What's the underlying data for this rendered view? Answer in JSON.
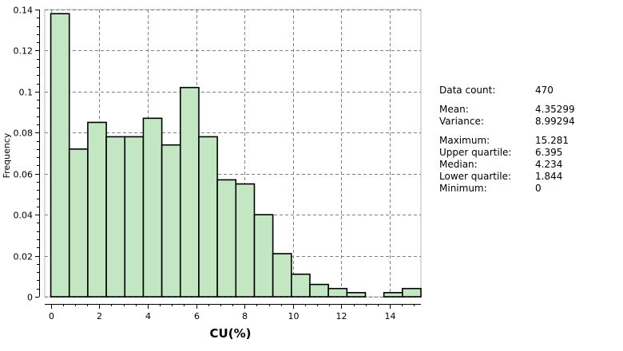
{
  "chart_data": {
    "type": "bar",
    "xlabel": "CU(%)",
    "ylabel": "Frequency",
    "xlim": [
      -0.25,
      15.281
    ],
    "ylim": [
      0,
      0.14
    ],
    "x_ticks": [
      0,
      2,
      4,
      6,
      8,
      10,
      12,
      14
    ],
    "y_ticks": [
      0,
      0.02,
      0.04,
      0.06,
      0.08,
      0.1,
      0.12,
      0.14
    ],
    "x_tick_labels": [
      "0",
      "2",
      "4",
      "6",
      "8",
      "10",
      "12",
      "14"
    ],
    "y_tick_labels": [
      "0",
      "0.02",
      "0.04",
      "0.06",
      "0.08",
      "0.1",
      "0.12",
      "0.14"
    ],
    "bin_edges": [
      0,
      0.7641,
      1.5281,
      2.2922,
      3.0562,
      3.8203,
      4.5843,
      5.3484,
      6.1124,
      6.8765,
      7.6405,
      8.4046,
      9.1686,
      9.9327,
      10.6967,
      11.4608,
      12.2248,
      12.9889,
      13.7529,
      14.517,
      15.281
    ],
    "values": [
      0.138,
      0.072,
      0.085,
      0.078,
      0.078,
      0.087,
      0.074,
      0.102,
      0.078,
      0.057,
      0.055,
      0.04,
      0.021,
      0.011,
      0.006,
      0.004,
      0.002,
      0.0,
      0.002,
      0.004
    ],
    "grid": true,
    "bar_color": "#c3e6c3",
    "bar_edge_color": "#000000"
  },
  "stats": {
    "data_count_label": "Data count:",
    "data_count": "470",
    "mean_label": "Mean:",
    "mean": "4.35299",
    "variance_label": "Variance:",
    "variance": "8.99294",
    "maximum_label": "Maximum:",
    "maximum": "15.281",
    "upper_quartile_label": "Upper quartile:",
    "upper_quartile": "6.395",
    "median_label": "Median:",
    "median": "4.234",
    "lower_quartile_label": "Lower quartile:",
    "lower_quartile": "1.844",
    "minimum_label": "Minimum:",
    "minimum": "0"
  }
}
